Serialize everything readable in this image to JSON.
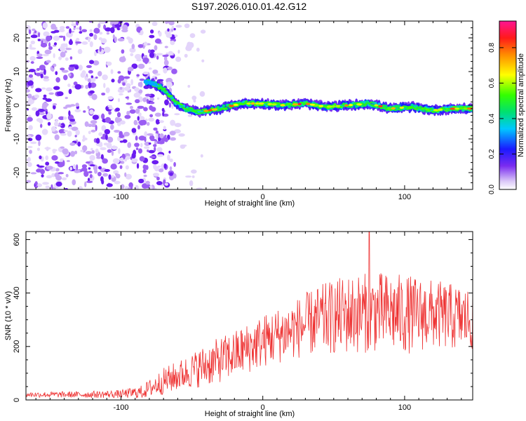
{
  "title": "S197.2026.010.01.42.G12",
  "chart_data": [
    {
      "type": "heatmap",
      "title": "S197.2026.010.01.42.G12",
      "xlabel": "Height of straight line (km)",
      "ylabel": "Frequency (Hz)",
      "xlim": [
        -167,
        148
      ],
      "ylim": [
        -25,
        25
      ],
      "xticks": [
        -100,
        0,
        100
      ],
      "xtick_labels": [
        "-100",
        "0",
        "100"
      ],
      "yticks": [
        -20,
        -10,
        0,
        10,
        20
      ],
      "ytick_labels": [
        "-20",
        "-10",
        "0",
        "10",
        "20"
      ],
      "colorbar": {
        "label": "Normalized spectral amplitude",
        "range": [
          0,
          0.95
        ],
        "ticks": [
          0,
          0.2,
          0.4,
          0.6,
          0.8
        ],
        "tick_labels": [
          "0.0",
          "0.2",
          "0.4",
          "0.6",
          "0.8"
        ]
      },
      "ridge": {
        "description_points_x_km": [
          -82,
          -75,
          -68,
          -62,
          -55,
          -45,
          -30,
          -15,
          0,
          15,
          30,
          45,
          60,
          75,
          90,
          105,
          120,
          135,
          148
        ],
        "frequency_hz": [
          7,
          6,
          4,
          1,
          -1,
          -2,
          -1,
          0.5,
          0.5,
          0,
          0.5,
          -0.5,
          0,
          0.5,
          -1,
          -0.5,
          -1.5,
          -1,
          -1
        ]
      },
      "noise_region_x_km": [
        -167,
        -62
      ]
    },
    {
      "type": "line",
      "xlabel": "Height of straight line (km)",
      "ylabel": "SNR (10 * v/v)",
      "xlim": [
        -167,
        148
      ],
      "ylim": [
        0,
        630
      ],
      "xticks": [
        -100,
        0,
        100
      ],
      "xtick_labels": [
        "-100",
        "0",
        "100"
      ],
      "yticks": [
        0,
        200,
        400,
        600
      ],
      "ytick_labels": [
        "0",
        "200",
        "400",
        "600"
      ],
      "series": [
        {
          "name": "SNR",
          "color": "#ee3333",
          "envelope_x_km": [
            -167,
            -130,
            -100,
            -85,
            -70,
            -55,
            -40,
            -20,
            0,
            20,
            40,
            60,
            80,
            100,
            120,
            148
          ],
          "envelope_mean": [
            20,
            20,
            22,
            30,
            70,
            100,
            130,
            170,
            220,
            260,
            300,
            320,
            330,
            320,
            320,
            300
          ],
          "envelope_amp": [
            10,
            12,
            15,
            25,
            50,
            60,
            80,
            90,
            100,
            110,
            130,
            150,
            150,
            150,
            130,
            120
          ],
          "peak_value": 628,
          "peak_x_km": 75
        }
      ]
    }
  ],
  "colors": {
    "line": "#ee3333",
    "background": "#ffffff",
    "axis": "#000000"
  }
}
